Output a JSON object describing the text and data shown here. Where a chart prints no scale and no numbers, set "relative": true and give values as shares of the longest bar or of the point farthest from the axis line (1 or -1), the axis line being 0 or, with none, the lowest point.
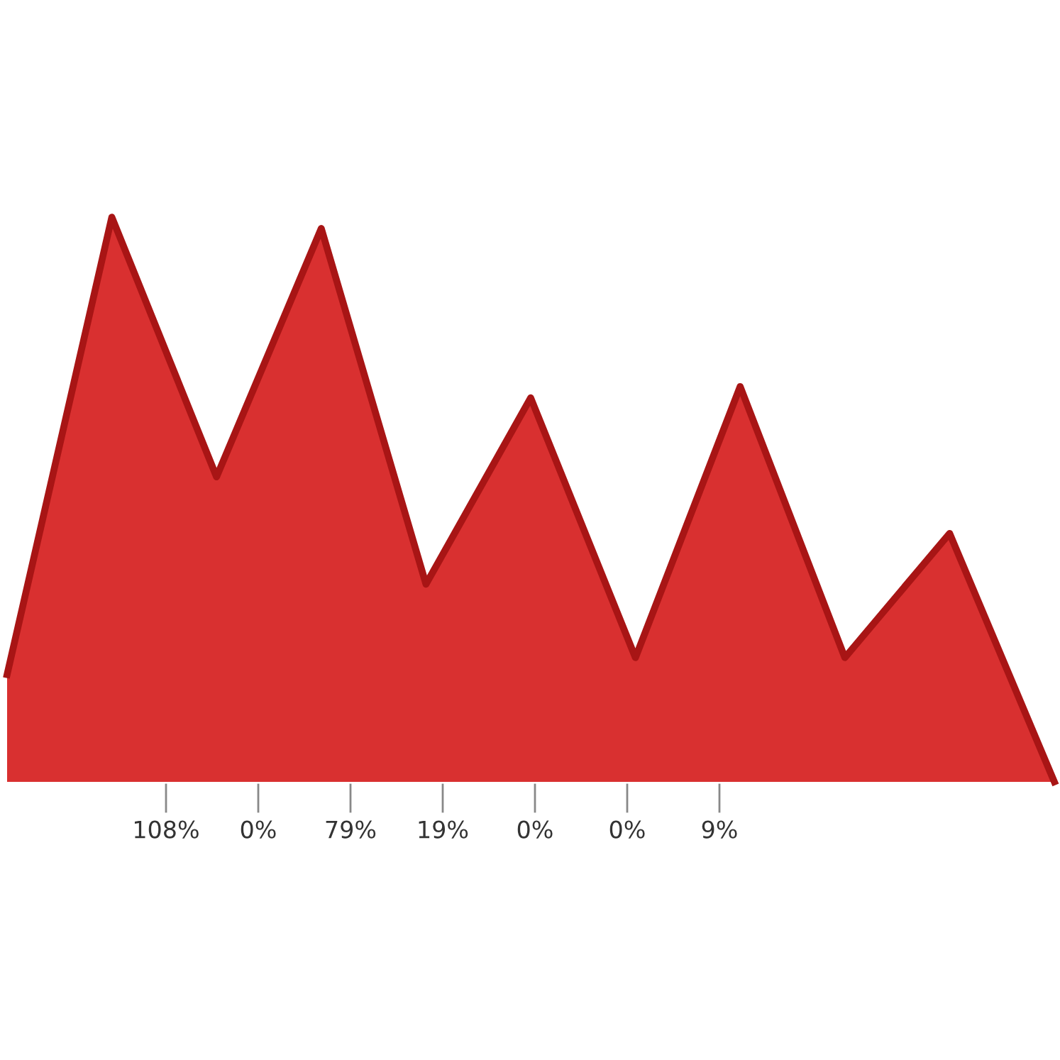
{
  "chart_data": {
    "type": "area",
    "relative": true,
    "categories": [
      null,
      null,
      null,
      null,
      null,
      null,
      null,
      null,
      null,
      null,
      null
    ],
    "series": [
      {
        "color": "#d93030",
        "values": [
          0.19,
          1,
          0.54,
          0.98,
          0.35,
          0.68,
          0.22,
          0.7,
          0.22,
          0.44,
          0
        ]
      }
    ],
    "annotations": [
      "108%",
      "0%",
      "79%",
      "19%",
      "0%",
      "0%",
      "9%"
    ],
    "grid": false,
    "legend": false
  }
}
